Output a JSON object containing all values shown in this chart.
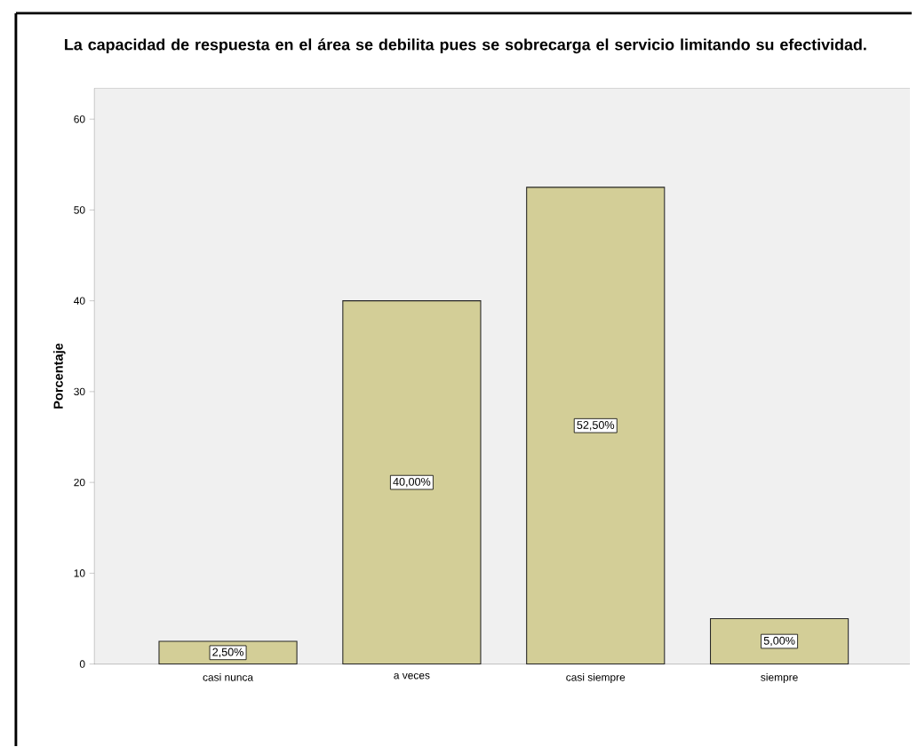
{
  "chart_data": {
    "type": "bar",
    "title": "La capacidad de respuesta en el área se debilita pues se sobrecarga el servicio limitando su efectividad.",
    "ylabel": "Porcentaje",
    "categories": [
      "casi nunca",
      "a veces",
      "casi siempre",
      "siempre"
    ],
    "values": [
      2.5,
      40,
      52.5,
      5
    ],
    "value_labels": [
      "2,50%",
      "40,00%",
      "52,50%",
      "5,00%"
    ],
    "color": "#d3ce97",
    "ylim": [
      0,
      63.4
    ],
    "yticks": [
      0,
      10,
      20,
      30,
      40,
      50,
      60
    ]
  }
}
